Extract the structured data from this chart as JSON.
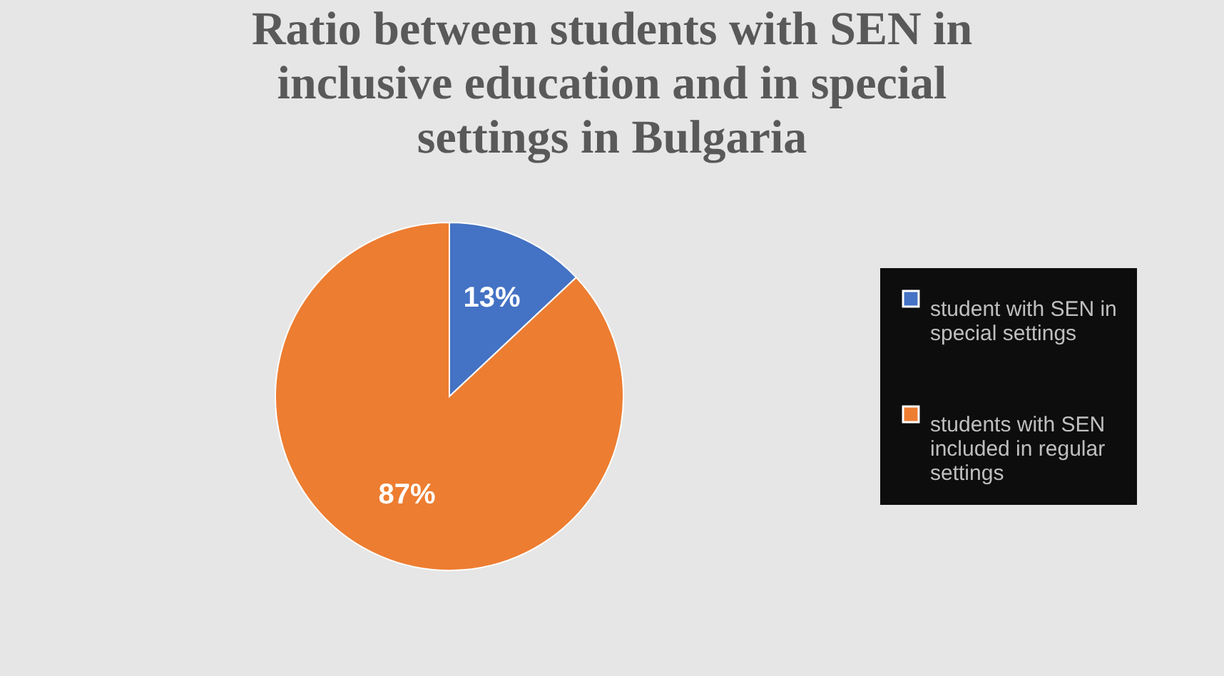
{
  "chart_data": {
    "type": "pie",
    "title": "Ratio between students with SEN in inclusive education and in special settings in Bulgaria",
    "categories": [
      "student with SEN in special settings",
      "students with SEN included in regular settings"
    ],
    "values": [
      13,
      87
    ],
    "colors": [
      "#4472c4",
      "#ed7d31"
    ],
    "value_labels": [
      "13%",
      "87%"
    ],
    "legend": "right"
  }
}
